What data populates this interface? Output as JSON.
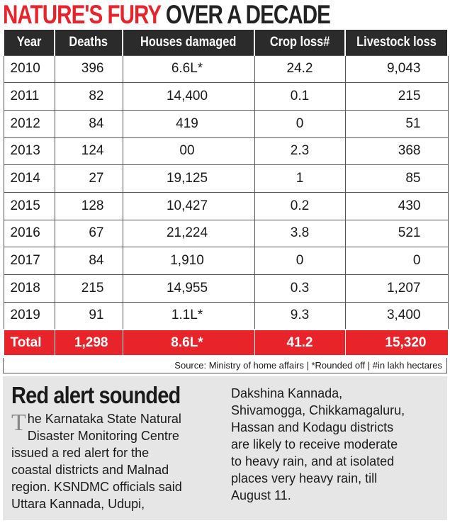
{
  "headline": {
    "part_red": "NATURE'S FURY",
    "part_dark": "OVER A DECADE"
  },
  "table": {
    "headers": [
      "Year",
      "Deaths",
      "Houses damaged",
      "Crop loss#",
      "Livestock loss"
    ],
    "rows": [
      [
        "2010",
        "396",
        "6.6L*",
        "24.2",
        "9,043"
      ],
      [
        "2011",
        "82",
        "14,400",
        "0.1",
        "215"
      ],
      [
        "2012",
        "84",
        "419",
        "0",
        "51"
      ],
      [
        "2013",
        "124",
        "00",
        "2.3",
        "368"
      ],
      [
        "2014",
        "27",
        "19,125",
        "1",
        "85"
      ],
      [
        "2015",
        "128",
        "10,427",
        "0.2",
        "430"
      ],
      [
        "2016",
        "67",
        "21,224",
        "3.8",
        "521"
      ],
      [
        "2017",
        "84",
        "1,910",
        "0",
        "0"
      ],
      [
        "2018",
        "215",
        "14,955",
        "0.3",
        "1,207"
      ],
      [
        "2019",
        "91",
        "1.1L*",
        "9.3",
        "3,400"
      ]
    ],
    "total": [
      "Total",
      "1,298",
      "8.6L*",
      "41.2",
      "15,320"
    ]
  },
  "source": "Source: Ministry of home affairs | *Rounded off | #in lakh hectares",
  "colors": {
    "accent_red": "#e8232a",
    "header_dark": "#2b2b2b",
    "story_bg": "#e6e6e6"
  },
  "story": {
    "title": "Red alert sounded",
    "dropcap": "T",
    "left_lines": [
      "he Karnataka State Natural",
      "Disaster Monitoring Centre",
      "issued a red alert for the",
      "coastal districts and Malnad",
      "region. KSNDMC officials said",
      "Uttara Kannada, Udupi,"
    ],
    "right_lines": [
      "Dakshina Kannada,",
      "Shivamogga, Chikkamagaluru,",
      "Hassan and Kodagu districts",
      "are likely to receive moderate",
      "to heavy rain, and at isolated",
      "places very heavy rain, till",
      "August 11."
    ]
  }
}
